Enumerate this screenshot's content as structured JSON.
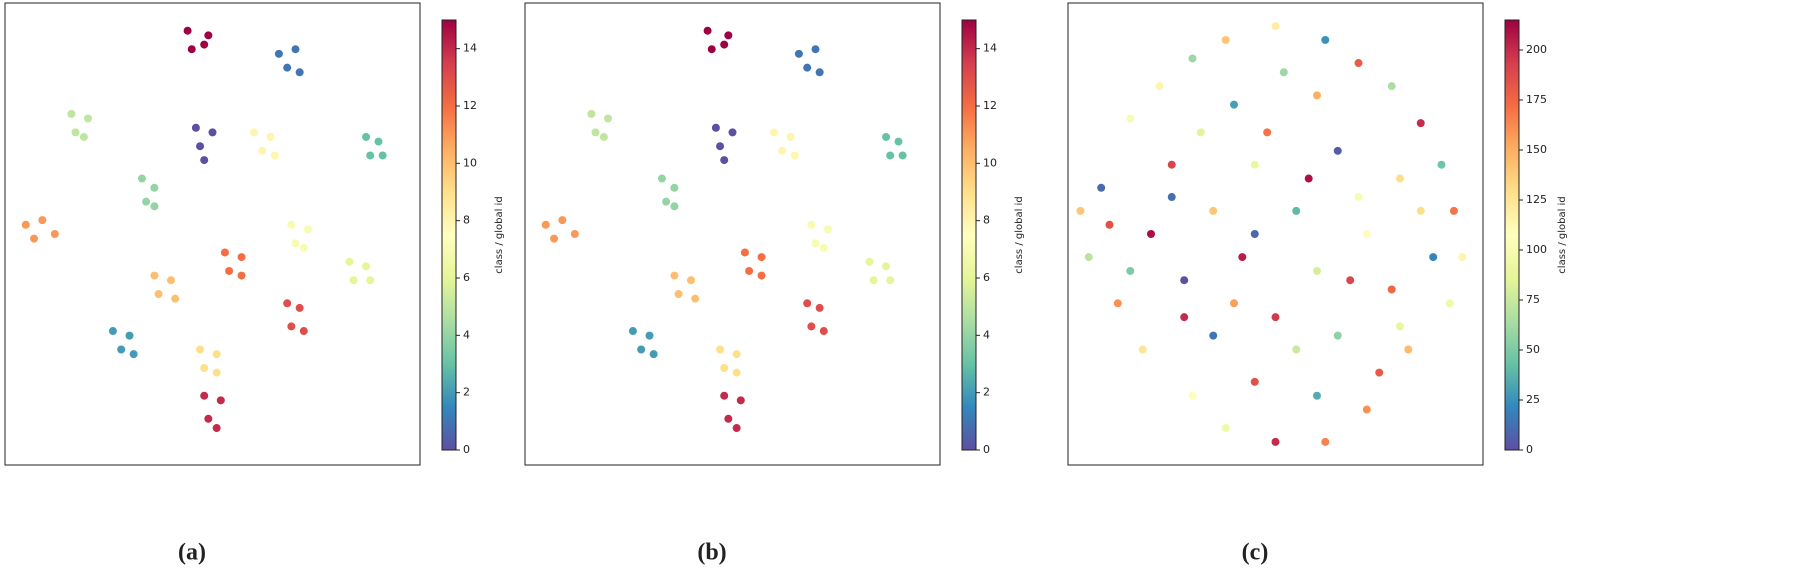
{
  "chart_data": [
    {
      "type": "scatter",
      "caption": "(a)",
      "colorbar_label": "class / global id",
      "colormap": "Spectral_r",
      "xlim": [
        0,
        100
      ],
      "ylim": [
        0,
        100
      ],
      "clim": [
        0,
        15
      ],
      "cticks": [
        0,
        2,
        4,
        6,
        8,
        10,
        12,
        14
      ],
      "x": [
        44,
        49,
        45,
        48,
        66,
        70,
        68,
        71,
        16,
        20,
        17,
        19,
        46,
        50,
        47,
        48,
        60,
        64,
        62,
        65,
        87,
        90,
        88,
        91,
        33,
        36,
        34,
        36,
        5,
        9,
        7,
        12,
        36,
        40,
        37,
        41,
        53,
        57,
        54,
        57,
        69,
        73,
        70,
        72,
        83,
        87,
        84,
        88,
        68,
        71,
        69,
        72,
        26,
        30,
        28,
        31,
        47,
        51,
        48,
        51,
        48,
        52,
        49,
        51
      ],
      "y": [
        94,
        93,
        90,
        91,
        89,
        90,
        86,
        85,
        76,
        75,
        72,
        71,
        73,
        72,
        69,
        66,
        72,
        71,
        68,
        67,
        71,
        70,
        67,
        67,
        62,
        60,
        57,
        56,
        52,
        53,
        49,
        50,
        41,
        40,
        37,
        36,
        46,
        45,
        42,
        41,
        52,
        51,
        48,
        47,
        44,
        43,
        40,
        40,
        35,
        34,
        30,
        29,
        29,
        28,
        25,
        24,
        25,
        24,
        21,
        20,
        15,
        14,
        10,
        8
      ],
      "c": [
        15,
        15,
        15,
        15,
        1,
        1,
        1,
        1,
        5,
        5,
        5,
        5,
        0,
        0,
        0,
        0,
        8,
        8,
        8,
        8,
        3,
        3,
        3,
        3,
        4,
        4,
        4,
        4,
        11,
        11,
        11,
        11,
        10,
        10,
        10,
        10,
        12,
        12,
        12,
        12,
        7,
        7,
        7,
        7,
        6,
        6,
        6,
        6,
        13,
        13,
        13,
        13,
        2,
        2,
        2,
        2,
        9,
        9,
        9,
        9,
        14,
        14,
        14,
        14
      ]
    },
    {
      "type": "scatter",
      "caption": "(b)",
      "colorbar_label": "class / global id",
      "colormap": "Spectral_r",
      "xlim": [
        0,
        100
      ],
      "ylim": [
        0,
        100
      ],
      "clim": [
        0,
        15
      ],
      "cticks": [
        0,
        2,
        4,
        6,
        8,
        10,
        12,
        14
      ],
      "x": [
        44,
        49,
        45,
        48,
        66,
        70,
        68,
        71,
        16,
        20,
        17,
        19,
        46,
        50,
        47,
        48,
        60,
        64,
        62,
        65,
        87,
        90,
        88,
        91,
        33,
        36,
        34,
        36,
        5,
        9,
        7,
        12,
        36,
        40,
        37,
        41,
        53,
        57,
        54,
        57,
        69,
        73,
        70,
        72,
        83,
        87,
        84,
        88,
        68,
        71,
        69,
        72,
        26,
        30,
        28,
        31,
        47,
        51,
        48,
        51,
        48,
        52,
        49,
        51
      ],
      "y": [
        94,
        93,
        90,
        91,
        89,
        90,
        86,
        85,
        76,
        75,
        72,
        71,
        73,
        72,
        69,
        66,
        72,
        71,
        68,
        67,
        71,
        70,
        67,
        67,
        62,
        60,
        57,
        56,
        52,
        53,
        49,
        50,
        41,
        40,
        37,
        36,
        46,
        45,
        42,
        41,
        52,
        51,
        48,
        47,
        44,
        43,
        40,
        40,
        35,
        34,
        30,
        29,
        29,
        28,
        25,
        24,
        25,
        24,
        21,
        20,
        15,
        14,
        10,
        8
      ],
      "c": [
        15,
        15,
        15,
        15,
        1,
        1,
        1,
        1,
        5,
        5,
        5,
        5,
        0,
        0,
        0,
        0,
        8,
        8,
        8,
        8,
        3,
        3,
        3,
        3,
        4,
        4,
        4,
        4,
        11,
        11,
        11,
        11,
        10,
        10,
        10,
        10,
        12,
        12,
        12,
        12,
        7,
        7,
        7,
        7,
        6,
        6,
        6,
        6,
        13,
        13,
        13,
        13,
        2,
        2,
        2,
        2,
        9,
        9,
        9,
        9,
        14,
        14,
        14,
        14
      ]
    },
    {
      "type": "scatter",
      "caption": "(c)",
      "colorbar_label": "class / global id",
      "colormap": "Spectral_r",
      "xlim": [
        0,
        100
      ],
      "ylim": [
        0,
        100
      ],
      "clim": [
        0,
        215
      ],
      "cticks": [
        0,
        25,
        50,
        75,
        100,
        125,
        150,
        175,
        200
      ],
      "x": [
        50,
        30,
        70,
        15,
        40,
        60,
        85,
        8,
        25,
        45,
        65,
        80,
        93,
        5,
        20,
        35,
        55,
        72,
        88,
        12,
        28,
        42,
        60,
        78,
        92,
        18,
        35,
        50,
        65,
        82,
        30,
        45,
        60,
        72,
        50,
        22,
        78,
        38,
        62,
        10,
        90,
        48,
        32,
        58,
        25,
        70,
        40,
        55,
        68,
        85,
        15,
        75,
        38,
        62,
        95,
        3,
        45,
        52,
        28,
        80
      ],
      "y": [
        95,
        88,
        87,
        75,
        78,
        80,
        74,
        60,
        65,
        65,
        68,
        62,
        55,
        45,
        50,
        55,
        55,
        50,
        45,
        35,
        40,
        45,
        42,
        38,
        35,
        25,
        28,
        32,
        28,
        25,
        15,
        18,
        15,
        12,
        5,
        82,
        82,
        92,
        92,
        52,
        65,
        72,
        72,
        62,
        58,
        58,
        35,
        25,
        40,
        55,
        42,
        20,
        8,
        5,
        45,
        55,
        50,
        85,
        32,
        30
      ],
      "c": [
        120,
        60,
        180,
        100,
        30,
        150,
        200,
        10,
        190,
        90,
        5,
        130,
        170,
        70,
        210,
        140,
        40,
        110,
        20,
        160,
        0,
        205,
        80,
        175,
        95,
        125,
        15,
        195,
        55,
        145,
        105,
        185,
        35,
        160,
        200,
        115,
        65,
        140,
        25,
        185,
        45,
        170,
        85,
        210,
        12,
        100,
        155,
        75,
        190,
        130,
        50,
        180,
        95,
        165,
        115,
        140,
        8,
        60,
        200,
        88
      ]
    }
  ]
}
